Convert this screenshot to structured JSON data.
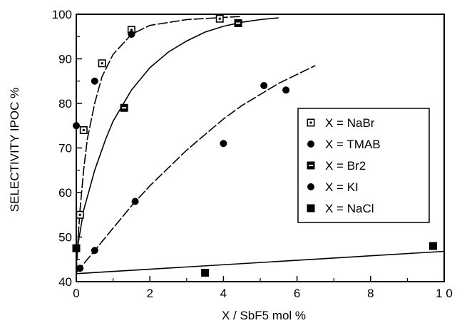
{
  "chart_data": {
    "type": "scatter",
    "xlabel": "X / SbF5 mol %",
    "ylabel": "SELECTIVITY IPOC %",
    "xlim": [
      0,
      10
    ],
    "ylim": [
      40,
      100
    ],
    "xticks": [
      0,
      2,
      4,
      6,
      8,
      10
    ],
    "xtick_labels": [
      "0",
      "2",
      "4",
      "6",
      "8",
      "1 0"
    ],
    "yticks": [
      40,
      50,
      60,
      70,
      80,
      90,
      100
    ],
    "ytick_labels": [
      "40",
      "50",
      "60",
      "70",
      "80",
      "90",
      "100"
    ],
    "grid": false,
    "legend_position": "right",
    "series": [
      {
        "name": "X = NaBr",
        "marker": "open-square",
        "points": [
          [
            0.1,
            55
          ],
          [
            0.2,
            74
          ],
          [
            0.7,
            89
          ],
          [
            1.5,
            96.5
          ],
          [
            3.9,
            99
          ]
        ]
      },
      {
        "name": "X = TMAB",
        "marker": "filled-circle",
        "points": [
          [
            0.0,
            75
          ],
          [
            0.5,
            85
          ],
          [
            1.5,
            95.5
          ]
        ]
      },
      {
        "name": "X = Br2",
        "marker": "dotted-square",
        "points": [
          [
            1.3,
            79
          ],
          [
            4.4,
            98
          ]
        ]
      },
      {
        "name": "X = KI",
        "marker": "filled-circle",
        "points": [
          [
            0.1,
            43
          ],
          [
            0.5,
            47
          ],
          [
            1.6,
            58
          ],
          [
            4.0,
            71
          ],
          [
            5.1,
            84
          ],
          [
            5.7,
            83
          ]
        ]
      },
      {
        "name": "X = NaCl",
        "marker": "filled-square",
        "points": [
          [
            0.0,
            47.5
          ],
          [
            3.5,
            42
          ],
          [
            9.7,
            48
          ]
        ]
      }
    ],
    "fit_curves": [
      {
        "for": "X = NaBr",
        "style": "dashed",
        "points": [
          [
            0.0,
            42
          ],
          [
            0.05,
            50
          ],
          [
            0.1,
            56
          ],
          [
            0.2,
            65
          ],
          [
            0.3,
            72
          ],
          [
            0.5,
            80
          ],
          [
            0.7,
            86
          ],
          [
            1.0,
            91
          ],
          [
            1.5,
            95.5
          ],
          [
            2.0,
            97.5
          ],
          [
            3.0,
            98.8
          ],
          [
            4.0,
            99.3
          ],
          [
            4.5,
            99.5
          ]
        ]
      },
      {
        "for": "X = Br2",
        "style": "solid",
        "points": [
          [
            0.0,
            46
          ],
          [
            0.2,
            56
          ],
          [
            0.5,
            65
          ],
          [
            0.8,
            72
          ],
          [
            1.0,
            76
          ],
          [
            1.5,
            83
          ],
          [
            2.0,
            88
          ],
          [
            2.5,
            91.5
          ],
          [
            3.0,
            94
          ],
          [
            3.5,
            96
          ],
          [
            4.0,
            97.3
          ],
          [
            4.5,
            98.2
          ],
          [
            5.0,
            98.8
          ],
          [
            5.5,
            99.2
          ]
        ]
      },
      {
        "for": "X = KI",
        "style": "dashed",
        "points": [
          [
            0.0,
            42
          ],
          [
            0.5,
            47
          ],
          [
            1.0,
            52
          ],
          [
            1.5,
            57
          ],
          [
            2.0,
            61.5
          ],
          [
            2.5,
            65.5
          ],
          [
            3.0,
            69.5
          ],
          [
            3.5,
            73
          ],
          [
            4.0,
            76.5
          ],
          [
            4.5,
            79.5
          ],
          [
            5.0,
            82
          ],
          [
            5.5,
            84.5
          ],
          [
            6.0,
            86.5
          ],
          [
            6.5,
            88.5
          ]
        ]
      },
      {
        "for": "X = NaCl",
        "style": "solid",
        "points": [
          [
            0.0,
            41.8
          ],
          [
            10.0,
            46.8
          ]
        ]
      }
    ]
  }
}
